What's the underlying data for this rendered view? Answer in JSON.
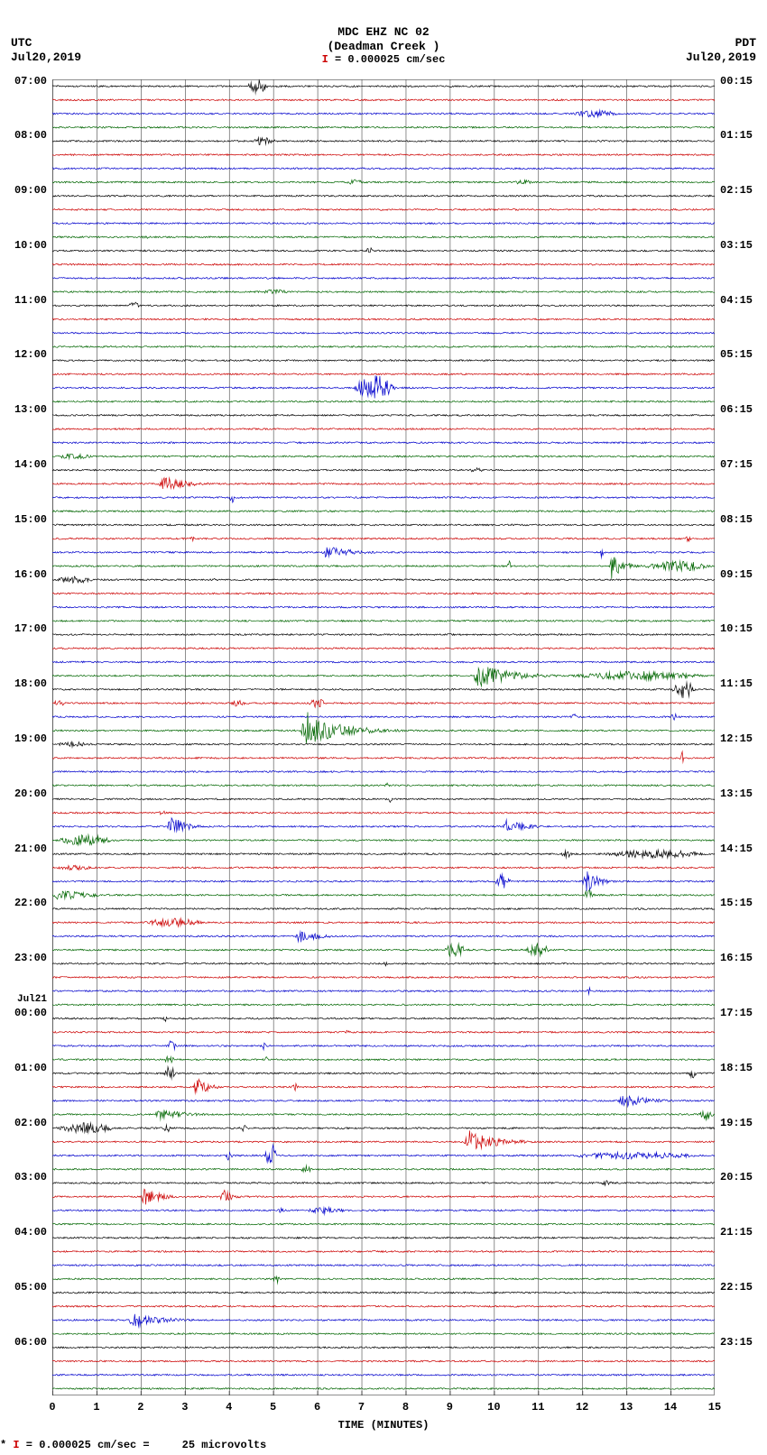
{
  "header": {
    "station": "MDC EHZ NC 02",
    "location": "(Deadman Creek )",
    "scale_key": " = 0.000025 cm/sec",
    "tz_left": "UTC",
    "date_left": "Jul20,2019",
    "tz_right": "PDT",
    "date_right": "Jul20,2019"
  },
  "footer": {
    "text": " = 0.000025 cm/sec =     25 microvolts"
  },
  "axes": {
    "xlabel": "TIME (MINUTES)",
    "x_min": 0,
    "x_max": 15,
    "x_tick_step": 1,
    "x_ticks": [
      "0",
      "1",
      "2",
      "3",
      "4",
      "5",
      "6",
      "7",
      "8",
      "9",
      "10",
      "11",
      "12",
      "13",
      "14",
      "15"
    ],
    "grid_color": "#444444",
    "background_color": "#ffffff",
    "line_width": 0.7,
    "grid_width": 0.6,
    "tick_len": 5
  },
  "trace_colors": [
    "#000000",
    "#cc0000",
    "#0000cc",
    "#006600"
  ],
  "n_traces": 96,
  "minutes_per_trace": 15,
  "left_labels": [
    {
      "trace": 0,
      "text": "07:00"
    },
    {
      "trace": 4,
      "text": "08:00"
    },
    {
      "trace": 8,
      "text": "09:00"
    },
    {
      "trace": 12,
      "text": "10:00"
    },
    {
      "trace": 16,
      "text": "11:00"
    },
    {
      "trace": 20,
      "text": "12:00"
    },
    {
      "trace": 24,
      "text": "13:00"
    },
    {
      "trace": 28,
      "text": "14:00"
    },
    {
      "trace": 32,
      "text": "15:00"
    },
    {
      "trace": 36,
      "text": "16:00"
    },
    {
      "trace": 40,
      "text": "17:00"
    },
    {
      "trace": 44,
      "text": "18:00"
    },
    {
      "trace": 48,
      "text": "19:00"
    },
    {
      "trace": 52,
      "text": "20:00"
    },
    {
      "trace": 56,
      "text": "21:00"
    },
    {
      "trace": 60,
      "text": "22:00"
    },
    {
      "trace": 64,
      "text": "23:00"
    },
    {
      "trace": 67,
      "text": "Jul21",
      "small": true
    },
    {
      "trace": 68,
      "text": "00:00"
    },
    {
      "trace": 72,
      "text": "01:00"
    },
    {
      "trace": 76,
      "text": "02:00"
    },
    {
      "trace": 80,
      "text": "03:00"
    },
    {
      "trace": 84,
      "text": "04:00"
    },
    {
      "trace": 88,
      "text": "05:00"
    },
    {
      "trace": 92,
      "text": "06:00"
    }
  ],
  "right_labels": [
    {
      "trace": 0,
      "text": "00:15"
    },
    {
      "trace": 4,
      "text": "01:15"
    },
    {
      "trace": 8,
      "text": "02:15"
    },
    {
      "trace": 12,
      "text": "03:15"
    },
    {
      "trace": 16,
      "text": "04:15"
    },
    {
      "trace": 20,
      "text": "05:15"
    },
    {
      "trace": 24,
      "text": "06:15"
    },
    {
      "trace": 28,
      "text": "07:15"
    },
    {
      "trace": 32,
      "text": "08:15"
    },
    {
      "trace": 36,
      "text": "09:15"
    },
    {
      "trace": 40,
      "text": "10:15"
    },
    {
      "trace": 44,
      "text": "11:15"
    },
    {
      "trace": 48,
      "text": "12:15"
    },
    {
      "trace": 52,
      "text": "13:15"
    },
    {
      "trace": 56,
      "text": "14:15"
    },
    {
      "trace": 60,
      "text": "15:15"
    },
    {
      "trace": 64,
      "text": "16:15"
    },
    {
      "trace": 68,
      "text": "17:15"
    },
    {
      "trace": 72,
      "text": "18:15"
    },
    {
      "trace": 76,
      "text": "19:15"
    },
    {
      "trace": 80,
      "text": "20:15"
    },
    {
      "trace": 84,
      "text": "21:15"
    },
    {
      "trace": 88,
      "text": "22:15"
    },
    {
      "trace": 92,
      "text": "23:15"
    }
  ],
  "events": [
    {
      "trace": 0,
      "start": 4.4,
      "dur": 0.5,
      "amp": 8
    },
    {
      "trace": 2,
      "start": 11.7,
      "dur": 1.2,
      "amp": 4
    },
    {
      "trace": 4,
      "start": 4.5,
      "dur": 0.6,
      "amp": 5
    },
    {
      "trace": 7,
      "start": 6.6,
      "dur": 0.5,
      "amp": 3
    },
    {
      "trace": 7,
      "start": 10.4,
      "dur": 0.5,
      "amp": 3
    },
    {
      "trace": 11,
      "start": 2.0,
      "dur": 0.2,
      "amp": 3
    },
    {
      "trace": 12,
      "start": 7.1,
      "dur": 0.15,
      "amp": 5
    },
    {
      "trace": 15,
      "start": 4.7,
      "dur": 0.7,
      "amp": 3
    },
    {
      "trace": 16,
      "start": 1.7,
      "dur": 0.3,
      "amp": 4
    },
    {
      "trace": 22,
      "start": 6.8,
      "dur": 1.0,
      "amp": 14
    },
    {
      "trace": 27,
      "start": 0.0,
      "dur": 1.0,
      "amp": 3
    },
    {
      "trace": 28,
      "start": 9.4,
      "dur": 0.4,
      "amp": 3
    },
    {
      "trace": 29,
      "start": 2.4,
      "dur": 1.6,
      "amp": 10,
      "decay": true
    },
    {
      "trace": 30,
      "start": 4.0,
      "dur": 0.15,
      "amp": 6
    },
    {
      "trace": 33,
      "start": 3.1,
      "dur": 0.15,
      "amp": 4
    },
    {
      "trace": 33,
      "start": 14.3,
      "dur": 0.2,
      "amp": 3
    },
    {
      "trace": 34,
      "start": 6.1,
      "dur": 1.6,
      "amp": 10,
      "decay": true
    },
    {
      "trace": 34,
      "start": 12.4,
      "dur": 0.1,
      "amp": 8
    },
    {
      "trace": 35,
      "start": 10.3,
      "dur": 0.1,
      "amp": 6
    },
    {
      "trace": 35,
      "start": 12.6,
      "dur": 0.8,
      "amp": 18,
      "decay": true
    },
    {
      "trace": 35,
      "start": 13.3,
      "dur": 1.7,
      "amp": 6
    },
    {
      "trace": 36,
      "start": 0.0,
      "dur": 1.0,
      "amp": 4
    },
    {
      "trace": 36,
      "start": 3.6,
      "dur": 0.1,
      "amp": 3
    },
    {
      "trace": 43,
      "start": 9.5,
      "dur": 2.2,
      "amp": 16,
      "decay": true
    },
    {
      "trace": 43,
      "start": 11.5,
      "dur": 3.5,
      "amp": 5
    },
    {
      "trace": 44,
      "start": 14.0,
      "dur": 0.6,
      "amp": 10
    },
    {
      "trace": 45,
      "start": 0.0,
      "dur": 0.3,
      "amp": 4
    },
    {
      "trace": 45,
      "start": 4.0,
      "dur": 0.4,
      "amp": 4
    },
    {
      "trace": 45,
      "start": 5.8,
      "dur": 0.4,
      "amp": 6
    },
    {
      "trace": 46,
      "start": 11.7,
      "dur": 0.2,
      "amp": 4
    },
    {
      "trace": 46,
      "start": 14.0,
      "dur": 0.15,
      "amp": 5
    },
    {
      "trace": 47,
      "start": 5.6,
      "dur": 2.4,
      "amp": 22,
      "decay": true
    },
    {
      "trace": 48,
      "start": 0.0,
      "dur": 1.0,
      "amp": 3
    },
    {
      "trace": 49,
      "start": 14.2,
      "dur": 0.1,
      "amp": 10
    },
    {
      "trace": 51,
      "start": 7.5,
      "dur": 0.15,
      "amp": 3
    },
    {
      "trace": 52,
      "start": 7.6,
      "dur": 0.1,
      "amp": 4
    },
    {
      "trace": 53,
      "start": 2.4,
      "dur": 0.2,
      "amp": 3
    },
    {
      "trace": 54,
      "start": 2.6,
      "dur": 1.0,
      "amp": 16,
      "decay": true
    },
    {
      "trace": 54,
      "start": 10.2,
      "dur": 1.2,
      "amp": 10,
      "decay": true
    },
    {
      "trace": 55,
      "start": 0.0,
      "dur": 1.5,
      "amp": 6
    },
    {
      "trace": 56,
      "start": 11.5,
      "dur": 0.3,
      "amp": 4
    },
    {
      "trace": 56,
      "start": 12.3,
      "dur": 2.7,
      "amp": 5
    },
    {
      "trace": 57,
      "start": 0.0,
      "dur": 1.0,
      "amp": 3
    },
    {
      "trace": 58,
      "start": 10.0,
      "dur": 0.4,
      "amp": 8
    },
    {
      "trace": 58,
      "start": 12.0,
      "dur": 0.8,
      "amp": 20,
      "decay": true
    },
    {
      "trace": 59,
      "start": 0.0,
      "dur": 2.0,
      "amp": 8,
      "decay": true
    },
    {
      "trace": 59,
      "start": 12.0,
      "dur": 0.3,
      "amp": 6
    },
    {
      "trace": 61,
      "start": 2.0,
      "dur": 1.5,
      "amp": 5
    },
    {
      "trace": 62,
      "start": 5.5,
      "dur": 1.2,
      "amp": 10,
      "decay": true
    },
    {
      "trace": 63,
      "start": 8.8,
      "dur": 0.6,
      "amp": 8
    },
    {
      "trace": 63,
      "start": 10.7,
      "dur": 0.6,
      "amp": 8
    },
    {
      "trace": 64,
      "start": 7.5,
      "dur": 0.1,
      "amp": 3
    },
    {
      "trace": 66,
      "start": 12.1,
      "dur": 0.1,
      "amp": 5
    },
    {
      "trace": 68,
      "start": 2.5,
      "dur": 0.1,
      "amp": 4
    },
    {
      "trace": 69,
      "start": 6.6,
      "dur": 0.15,
      "amp": 3
    },
    {
      "trace": 70,
      "start": 2.6,
      "dur": 0.2,
      "amp": 8
    },
    {
      "trace": 70,
      "start": 4.7,
      "dur": 0.15,
      "amp": 6
    },
    {
      "trace": 71,
      "start": 2.5,
      "dur": 0.3,
      "amp": 4
    },
    {
      "trace": 71,
      "start": 4.8,
      "dur": 0.1,
      "amp": 3
    },
    {
      "trace": 72,
      "start": 2.5,
      "dur": 0.3,
      "amp": 10
    },
    {
      "trace": 72,
      "start": 14.4,
      "dur": 0.2,
      "amp": 6
    },
    {
      "trace": 73,
      "start": 3.2,
      "dur": 0.8,
      "amp": 14,
      "decay": true
    },
    {
      "trace": 73,
      "start": 5.4,
      "dur": 0.2,
      "amp": 4
    },
    {
      "trace": 74,
      "start": 12.8,
      "dur": 1.6,
      "amp": 10,
      "decay": true
    },
    {
      "trace": 75,
      "start": 2.3,
      "dur": 1.8,
      "amp": 8,
      "decay": true
    },
    {
      "trace": 75,
      "start": 14.6,
      "dur": 0.4,
      "amp": 6
    },
    {
      "trace": 76,
      "start": 0.0,
      "dur": 1.5,
      "amp": 6
    },
    {
      "trace": 76,
      "start": 2.5,
      "dur": 0.2,
      "amp": 5
    },
    {
      "trace": 76,
      "start": 4.2,
      "dur": 0.3,
      "amp": 4
    },
    {
      "trace": 77,
      "start": 9.3,
      "dur": 2.0,
      "amp": 14,
      "decay": true
    },
    {
      "trace": 78,
      "start": 3.9,
      "dur": 0.2,
      "amp": 6
    },
    {
      "trace": 78,
      "start": 4.8,
      "dur": 0.3,
      "amp": 14
    },
    {
      "trace": 78,
      "start": 11.4,
      "dur": 3.6,
      "amp": 4
    },
    {
      "trace": 79,
      "start": 5.6,
      "dur": 0.3,
      "amp": 4
    },
    {
      "trace": 80,
      "start": 12.4,
      "dur": 0.3,
      "amp": 3
    },
    {
      "trace": 81,
      "start": 2.0,
      "dur": 1.0,
      "amp": 14,
      "decay": true
    },
    {
      "trace": 81,
      "start": 3.8,
      "dur": 0.6,
      "amp": 12,
      "decay": true
    },
    {
      "trace": 82,
      "start": 5.1,
      "dur": 0.15,
      "amp": 4
    },
    {
      "trace": 82,
      "start": 5.7,
      "dur": 1.0,
      "amp": 4
    },
    {
      "trace": 87,
      "start": 5.0,
      "dur": 0.15,
      "amp": 6
    },
    {
      "trace": 90,
      "start": 1.7,
      "dur": 2.0,
      "amp": 10,
      "decay": true
    }
  ],
  "noise": {
    "base_amp": 0.9,
    "samples_per_min": 60
  }
}
